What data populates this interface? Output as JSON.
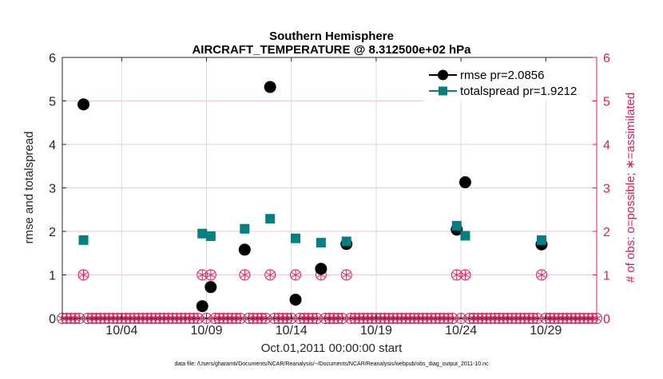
{
  "chart_data": {
    "type": "line",
    "title_line1": "Southern Hemisphere",
    "title_line2": "AIRCRAFT_TEMPERATURE @ 8.312500e+02 hPa",
    "xlabel": "Oct.01,2011 00:00:00 start",
    "ylabel": "rmse and totalspread",
    "ylabel_right": "# of obs: o=possible; ∗=assimilated",
    "footnote": "data file: /Users/gharamti/Documents/NCAR/Reanalysis/~/Documents/NCAR/Reanalysis/webpub/obs_diag_output_2011-10.nc",
    "xlim": [
      0.5,
      32
    ],
    "ylim": [
      0,
      6
    ],
    "ylim_right": [
      0,
      6
    ],
    "x_ticks": [
      {
        "value": 4,
        "label": "10/04"
      },
      {
        "value": 9,
        "label": "10/09"
      },
      {
        "value": 14,
        "label": "10/14"
      },
      {
        "value": 19,
        "label": "10/19"
      },
      {
        "value": 24,
        "label": "10/24"
      },
      {
        "value": 29,
        "label": "10/29"
      }
    ],
    "y_ticks": [
      "0",
      "1",
      "2",
      "3",
      "4",
      "5",
      "6"
    ],
    "y_ticks_right": [
      "0",
      "1",
      "2",
      "3",
      "4",
      "5",
      "6"
    ],
    "series": [
      {
        "name": "rmse",
        "legend": "rmse pr=2.0856",
        "color": "#000000",
        "marker": "circle",
        "points": [
          [
            1.75,
            4.92
          ],
          [
            8.75,
            0.28
          ],
          [
            9.25,
            0.72
          ],
          [
            11.25,
            1.58
          ],
          [
            12.75,
            5.32
          ],
          [
            14.25,
            0.43
          ],
          [
            15.75,
            1.14
          ],
          [
            17.25,
            1.71
          ],
          [
            23.75,
            2.04
          ],
          [
            24.25,
            3.13
          ],
          [
            28.75,
            1.7
          ]
        ]
      },
      {
        "name": "totalspread",
        "legend": "totalspread pr=1.9212",
        "color": "#008080",
        "marker": "square",
        "points": [
          [
            1.75,
            1.8
          ],
          [
            8.75,
            1.95
          ],
          [
            9.25,
            1.89
          ],
          [
            11.25,
            2.06
          ],
          [
            12.75,
            2.29
          ],
          [
            14.25,
            1.84
          ],
          [
            15.75,
            1.74
          ],
          [
            17.25,
            1.77
          ],
          [
            23.75,
            2.13
          ],
          [
            24.25,
            1.9
          ],
          [
            28.75,
            1.8
          ]
        ]
      }
    ],
    "obs_counts": {
      "color": "#d81b60",
      "x_start": 0.5,
      "x_step": 0.25,
      "count": 127,
      "nonzero": [
        {
          "x": 1.75,
          "possible": 1,
          "assimilated": 1
        },
        {
          "x": 8.75,
          "possible": 1,
          "assimilated": 1
        },
        {
          "x": 9.25,
          "possible": 1,
          "assimilated": 1
        },
        {
          "x": 11.25,
          "possible": 1,
          "assimilated": 1
        },
        {
          "x": 12.75,
          "possible": 1,
          "assimilated": 1
        },
        {
          "x": 14.25,
          "possible": 1,
          "assimilated": 1
        },
        {
          "x": 15.75,
          "possible": 1,
          "assimilated": 1
        },
        {
          "x": 17.25,
          "possible": 1,
          "assimilated": 1
        },
        {
          "x": 23.75,
          "possible": 1,
          "assimilated": 1
        },
        {
          "x": 24.25,
          "possible": 1,
          "assimilated": 1
        },
        {
          "x": 28.75,
          "possible": 1,
          "assimilated": 1
        }
      ]
    }
  }
}
